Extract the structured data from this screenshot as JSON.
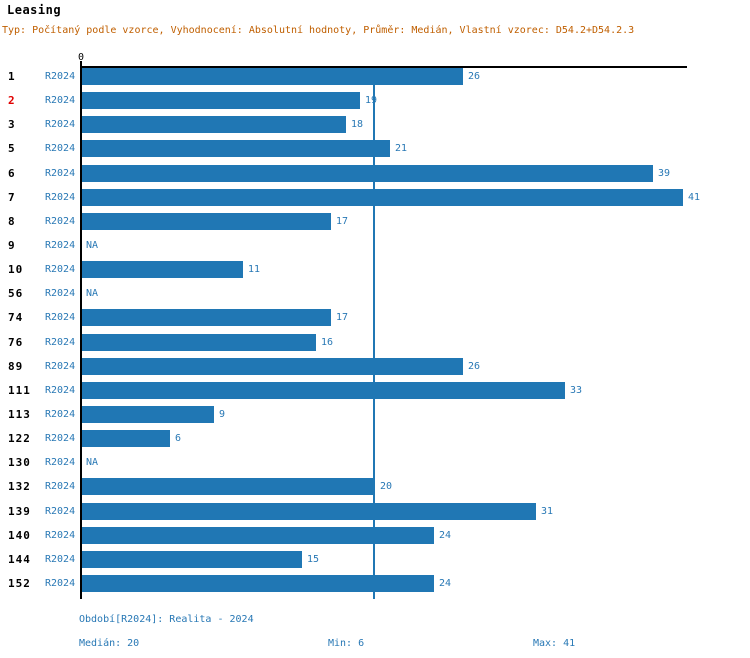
{
  "title": "Leasing",
  "subtitle": "Typ: Počítaný podle vzorce, Vyhodnocení: Absolutní hodnoty, Průměr: Medián, Vlastní vzorec: D54.2+D54.2.3",
  "axis": {
    "zero_label": "0"
  },
  "colors": {
    "bar": "#2077b4",
    "text_blue": "#2878b5",
    "subtitle_orange": "#c05f00",
    "highlight_red": "#e00000",
    "axis_black": "#000000"
  },
  "chart_data": {
    "type": "bar",
    "orientation": "horizontal",
    "xlim": [
      0,
      41.3
    ],
    "median_line_value": 20,
    "period_label": "R2024",
    "na_label": "NA",
    "rows": [
      {
        "id": "1",
        "period": "R2024",
        "value": 26,
        "highlight": false
      },
      {
        "id": "2",
        "period": "R2024",
        "value": 19,
        "highlight": true
      },
      {
        "id": "3",
        "period": "R2024",
        "value": 18,
        "highlight": false
      },
      {
        "id": "5",
        "period": "R2024",
        "value": 21,
        "highlight": false
      },
      {
        "id": "6",
        "period": "R2024",
        "value": 39,
        "highlight": false
      },
      {
        "id": "7",
        "period": "R2024",
        "value": 41,
        "highlight": false
      },
      {
        "id": "8",
        "period": "R2024",
        "value": 17,
        "highlight": false
      },
      {
        "id": "9",
        "period": "R2024",
        "value": null,
        "highlight": false
      },
      {
        "id": "10",
        "period": "R2024",
        "value": 11,
        "highlight": false
      },
      {
        "id": "56",
        "period": "R2024",
        "value": null,
        "highlight": false
      },
      {
        "id": "74",
        "period": "R2024",
        "value": 17,
        "highlight": false
      },
      {
        "id": "76",
        "period": "R2024",
        "value": 16,
        "highlight": false
      },
      {
        "id": "89",
        "period": "R2024",
        "value": 26,
        "highlight": false
      },
      {
        "id": "111",
        "period": "R2024",
        "value": 33,
        "highlight": false
      },
      {
        "id": "113",
        "period": "R2024",
        "value": 9,
        "highlight": false
      },
      {
        "id": "122",
        "period": "R2024",
        "value": 6,
        "highlight": false
      },
      {
        "id": "130",
        "period": "R2024",
        "value": null,
        "highlight": false
      },
      {
        "id": "132",
        "period": "R2024",
        "value": 20,
        "highlight": false
      },
      {
        "id": "139",
        "period": "R2024",
        "value": 31,
        "highlight": false
      },
      {
        "id": "140",
        "period": "R2024",
        "value": 24,
        "highlight": false
      },
      {
        "id": "144",
        "period": "R2024",
        "value": 15,
        "highlight": false
      },
      {
        "id": "152",
        "period": "R2024",
        "value": 24,
        "highlight": false
      }
    ]
  },
  "footer": {
    "period": "Období[R2024]: Realita - 2024",
    "median": "Medián: 20",
    "min": "Min: 6",
    "max": "Max: 41"
  }
}
